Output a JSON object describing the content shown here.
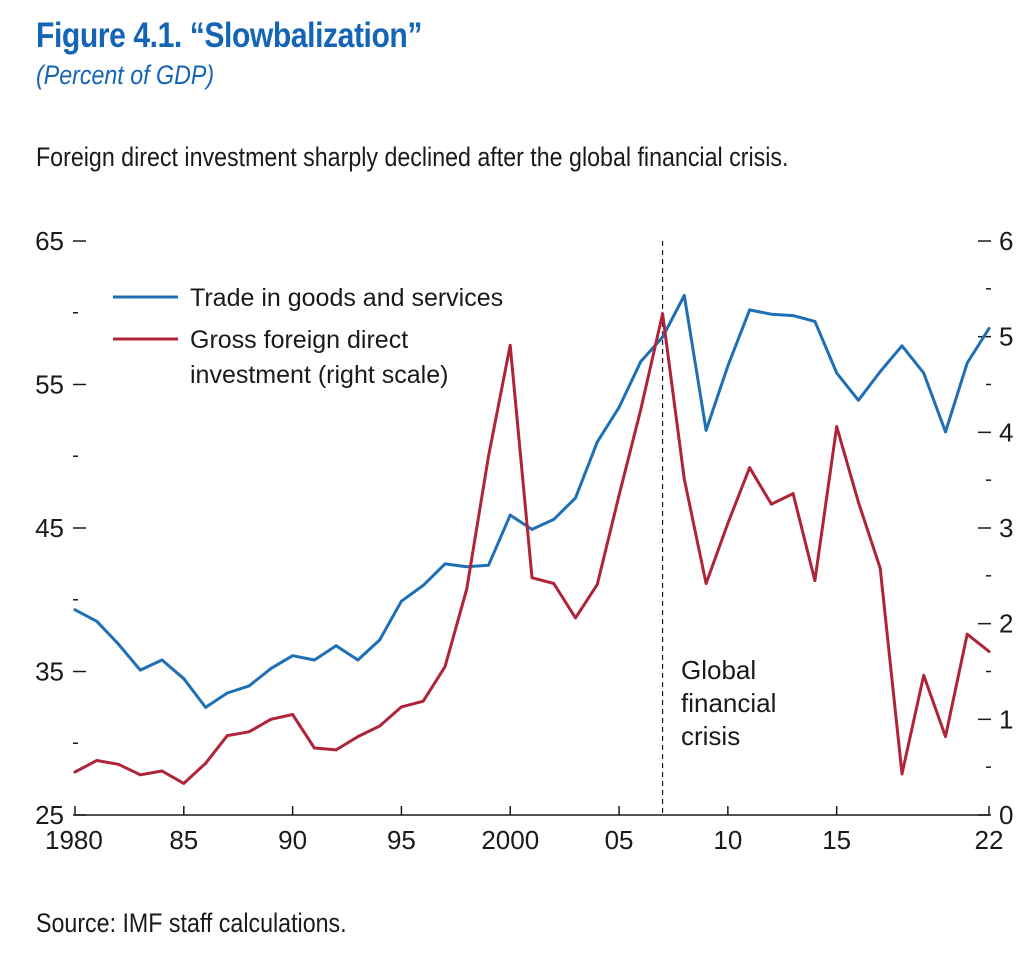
{
  "figure": {
    "title": "Figure 4.1.  “Slowbalization”",
    "units": "(Percent of GDP)",
    "subtitle": "Foreign direct investment sharply declined after the global financial crisis.",
    "source": "Source: IMF staff calculations."
  },
  "chart_data": {
    "type": "line",
    "x": [
      1980,
      1981,
      1982,
      1983,
      1984,
      1985,
      1986,
      1987,
      1988,
      1989,
      1990,
      1991,
      1992,
      1993,
      1994,
      1995,
      1996,
      1997,
      1998,
      1999,
      2000,
      2001,
      2002,
      2003,
      2004,
      2005,
      2006,
      2007,
      2008,
      2009,
      2010,
      2011,
      2012,
      2013,
      2014,
      2015,
      2016,
      2017,
      2018,
      2019,
      2020,
      2021,
      2022
    ],
    "x_tick_values": [
      1980,
      1985,
      1990,
      1995,
      2000,
      2005,
      2010,
      2015,
      2022
    ],
    "x_tick_labels": [
      "1980",
      "85",
      "90",
      "95",
      "2000",
      "05",
      "10",
      "15",
      "22"
    ],
    "xlim": [
      1980,
      2022
    ],
    "y_left": {
      "lim": [
        25,
        65
      ],
      "tick_values": [
        25,
        35,
        45,
        55,
        65
      ],
      "tick_labels": [
        "25",
        "35",
        "45",
        "55",
        "65"
      ],
      "minor_ticks": [
        30,
        40,
        50,
        60
      ]
    },
    "y_right": {
      "lim": [
        0,
        6
      ],
      "tick_values": [
        0,
        1,
        2,
        3,
        4,
        5,
        6
      ],
      "tick_labels": [
        "0",
        "1",
        "2",
        "3",
        "4",
        "5",
        "6"
      ],
      "minor_ticks": [
        0.5,
        1.5,
        2.5,
        3.5,
        4.5,
        5.5
      ]
    },
    "series": [
      {
        "name": "Trade in goods and services",
        "axis": "left",
        "color": "#1f6fb5",
        "values": [
          39.3,
          38.5,
          36.9,
          35.1,
          35.8,
          34.5,
          32.5,
          33.5,
          34.0,
          35.2,
          36.1,
          35.8,
          36.8,
          35.8,
          37.2,
          39.9,
          41.0,
          42.5,
          42.3,
          42.4,
          45.9,
          44.9,
          45.6,
          47.1,
          51.0,
          53.4,
          56.6,
          58.3,
          61.2,
          51.8,
          56.3,
          60.2,
          59.9,
          59.8,
          59.4,
          55.8,
          53.9,
          55.9,
          57.7,
          55.8,
          51.7,
          56.5,
          58.9
        ]
      },
      {
        "name": "Gross foreign direct investment (right scale)",
        "axis": "right",
        "color": "#b0243a",
        "values": [
          0.45,
          0.57,
          0.53,
          0.42,
          0.46,
          0.33,
          0.54,
          0.83,
          0.87,
          1.0,
          1.05,
          0.7,
          0.68,
          0.82,
          0.93,
          1.13,
          1.19,
          1.55,
          2.36,
          3.75,
          4.91,
          2.48,
          2.42,
          2.06,
          2.41,
          3.34,
          4.24,
          5.24,
          3.51,
          2.42,
          3.05,
          3.63,
          3.25,
          3.36,
          2.45,
          4.06,
          3.27,
          2.58,
          0.43,
          1.46,
          0.82,
          1.89,
          1.71
        ]
      }
    ],
    "annotation": {
      "x": 2007,
      "lines": [
        "Global",
        "financial",
        "crisis"
      ]
    },
    "legend": {
      "placement": "top-left",
      "entries": [
        [
          "Trade in goods and services"
        ],
        [
          "Gross foreign direct",
          "investment (right scale)"
        ]
      ]
    },
    "grid": false
  }
}
